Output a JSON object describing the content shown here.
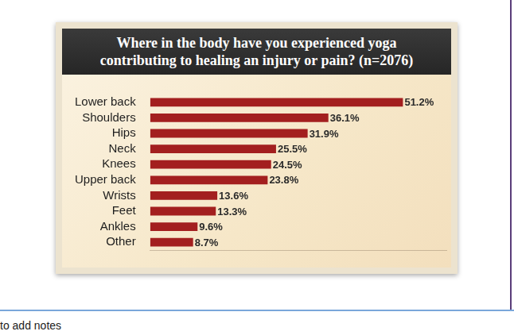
{
  "chart_data": {
    "type": "bar",
    "orientation": "horizontal",
    "title": "Where in the body have you experienced yoga contributing to healing an injury or pain? (n=2076)",
    "categories": [
      "Lower back",
      "Shoulders",
      "Hips",
      "Neck",
      "Knees",
      "Upper back",
      "Wrists",
      "Feet",
      "Ankles",
      "Other"
    ],
    "values": [
      51.2,
      36.1,
      31.9,
      25.5,
      24.5,
      23.8,
      13.6,
      13.3,
      9.6,
      8.7
    ],
    "value_labels": [
      "51.2%",
      "36.1%",
      "31.9%",
      "25.5%",
      "24.5%",
      "23.8%",
      "13.6%",
      "13.3%",
      "9.6%",
      "8.7%"
    ],
    "color": "#a31f1f",
    "xlim": [
      0,
      60
    ],
    "grid": false,
    "data_labels": true,
    "tick_labels": "y",
    "annotations": [
      "to add notes"
    ]
  }
}
